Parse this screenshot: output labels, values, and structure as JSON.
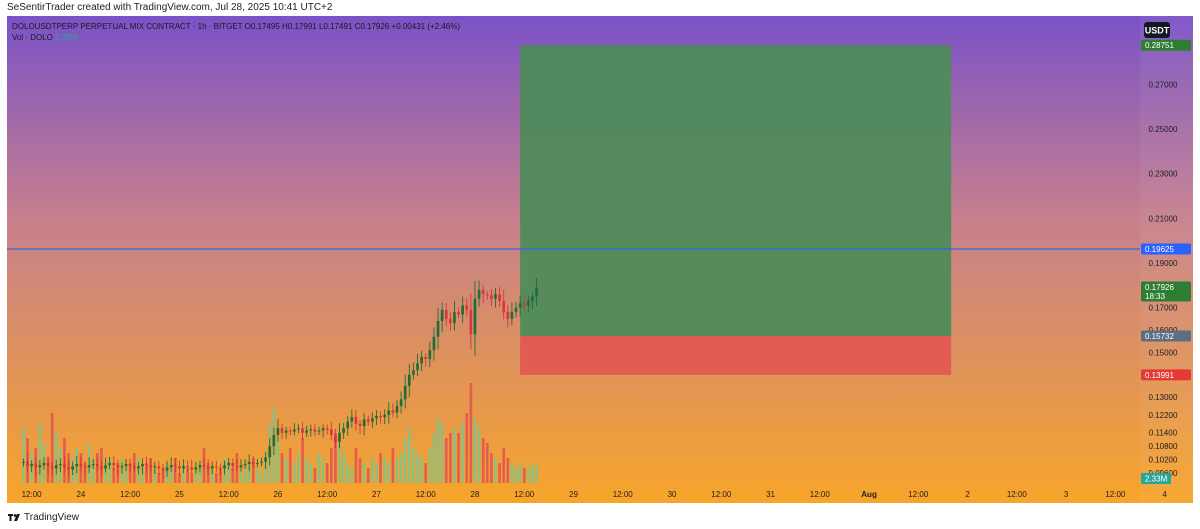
{
  "caption": "SeSentirTrader created with TradingView.com, Jul 28, 2025 10:41 UTC+2",
  "legend": {
    "symbol_line": "DOLOUSDTPERP PERPETUAL MIX CONTRACT · 1h · BITGET",
    "open": "O0.17495",
    "high": "H0.17991",
    "low": "L0.17491",
    "close": "C0.17926",
    "change": "+0.00431 (+2.46%)",
    "vol_label": "Vol · DOLO",
    "vol_value": "2.33M"
  },
  "currency_badge": "USDT",
  "brand": "TradingView",
  "colors": {
    "bg_top": "#7b52c7",
    "bg_mid": "#c7808c",
    "bg_bottom": "#f7a52a",
    "up": "#1f6e3a",
    "down": "#d6363e",
    "vol_up": "#7ec48a",
    "vol_down": "#e05252",
    "profit_zone": "#4f8b5a",
    "loss_zone": "#e05a52",
    "horizontal_line": "#2f6bd6",
    "tag_green": "#2e7d32",
    "tag_gray": "#5c6f80",
    "tag_red": "#e53935",
    "tag_blue": "#2962ff",
    "tag_vol": "#26a69a"
  },
  "chart_data": {
    "type": "candlestick",
    "title": "DOLOUSDTPERP PERPETUAL MIX CONTRACT · 1h · BITGET",
    "timeframe": "1h",
    "ylim": [
      0.0915,
      0.297
    ],
    "y_ticks": [
      "0.27000",
      "0.25000",
      "0.23000",
      "0.21000",
      "0.19000",
      "0.17000",
      "0.16000",
      "0.15000",
      "0.13000",
      "0.12200",
      "0.11400",
      "0.10800",
      "0.10200",
      "0.09600"
    ],
    "x_ticks": [
      "12:00",
      "24",
      "12:00",
      "25",
      "12:00",
      "26",
      "12:00",
      "27",
      "12:00",
      "28",
      "12:00",
      "29",
      "12:00",
      "30",
      "12:00",
      "31",
      "12:00",
      "Aug",
      "12:00",
      "2",
      "12:00",
      "3",
      "12:00",
      "4"
    ],
    "x_tick_bold": [
      "Aug"
    ],
    "x_range_hours": [
      -6,
      270
    ],
    "price_tags": [
      {
        "value": 0.28751,
        "label": "0.28751",
        "style": "green"
      },
      {
        "value": 0.19625,
        "label": "0.19625",
        "style": "blue"
      },
      {
        "value": 0.17926,
        "label": "0.17926",
        "sub": "18:33",
        "style": "green"
      },
      {
        "value": 0.15732,
        "label": "0.15732",
        "style": "gray"
      },
      {
        "value": 0.13991,
        "label": "0.13991",
        "style": "red"
      }
    ],
    "horizontal_line": 0.19625,
    "position": {
      "type": "long",
      "entry": 0.15732,
      "target": 0.28751,
      "stop": 0.13991,
      "start_hour": 119,
      "end_hour": 224
    },
    "candles_x_start_hour": -2,
    "candles_step_hours": 1,
    "closes": [
      0.101,
      0.099,
      0.1,
      0.0985,
      0.0995,
      0.1005,
      0.099,
      0.098,
      0.0995,
      0.1,
      0.0985,
      0.0975,
      0.099,
      0.1,
      0.099,
      0.0985,
      0.0995,
      0.1,
      0.099,
      0.098,
      0.0995,
      0.1005,
      0.0995,
      0.0985,
      0.099,
      0.1,
      0.099,
      0.098,
      0.099,
      0.1,
      0.0995,
      0.0985,
      0.099,
      0.098,
      0.097,
      0.0985,
      0.0995,
      0.099,
      0.098,
      0.099,
      0.0985,
      0.0975,
      0.0985,
      0.0995,
      0.099,
      0.098,
      0.099,
      0.0985,
      0.098,
      0.0995,
      0.1005,
      0.099,
      0.0985,
      0.0995,
      0.1,
      0.101,
      0.1,
      0.1005,
      0.101,
      0.103,
      0.108,
      0.113,
      0.116,
      0.114,
      0.115,
      0.1145,
      0.1155,
      0.116,
      0.114,
      0.115,
      0.1155,
      0.1145,
      0.115,
      0.116,
      0.1155,
      0.113,
      0.11,
      0.114,
      0.116,
      0.119,
      0.121,
      0.118,
      0.117,
      0.12,
      0.119,
      0.1205,
      0.1215,
      0.121,
      0.122,
      0.124,
      0.123,
      0.126,
      0.129,
      0.135,
      0.14,
      0.142,
      0.145,
      0.148,
      0.147,
      0.151,
      0.157,
      0.164,
      0.169,
      0.165,
      0.163,
      0.168,
      0.167,
      0.171,
      0.169,
      0.158,
      0.174,
      0.178,
      0.176,
      0.1755,
      0.174,
      0.176,
      0.173,
      0.168,
      0.165,
      0.168,
      0.17,
      0.172,
      0.171,
      0.173,
      0.175,
      0.179
    ],
    "volumes": [
      0.55,
      0.45,
      0.3,
      0.35,
      0.6,
      0.4,
      0.25,
      0.7,
      0.5,
      0.35,
      0.45,
      0.3,
      0.25,
      0.35,
      0.3,
      0.2,
      0.4,
      0.25,
      0.3,
      0.35,
      0.2,
      0.25,
      0.15,
      0.2,
      0.25,
      0.15,
      0.2,
      0.3,
      0.25,
      0.15,
      0.2,
      0.25,
      0.15,
      0.1,
      0.15,
      0.2,
      0.15,
      0.25,
      0.1,
      0.2,
      0.15,
      0.1,
      0.15,
      0.2,
      0.35,
      0.2,
      0.15,
      0.1,
      0.15,
      0.25,
      0.2,
      0.15,
      0.3,
      0.1,
      0.15,
      0.2,
      0.25,
      0.15,
      0.1,
      0.3,
      0.6,
      0.75,
      0.45,
      0.3,
      0.25,
      0.35,
      0.2,
      0.3,
      0.45,
      0.25,
      0.2,
      0.15,
      0.3,
      0.25,
      0.2,
      0.35,
      0.5,
      0.4,
      0.3,
      0.2,
      0.15,
      0.35,
      0.25,
      0.2,
      0.15,
      0.25,
      0.2,
      0.3,
      0.25,
      0.2,
      0.35,
      0.25,
      0.3,
      0.45,
      0.55,
      0.35,
      0.3,
      0.25,
      0.2,
      0.35,
      0.5,
      0.65,
      0.6,
      0.45,
      0.5,
      0.55,
      0.5,
      0.6,
      0.7,
      1.0,
      0.65,
      0.55,
      0.45,
      0.4,
      0.3,
      0.25,
      0.2,
      0.35,
      0.25,
      0.2,
      0.15,
      0.2,
      0.15,
      0.15,
      0.2,
      0.18
    ]
  }
}
